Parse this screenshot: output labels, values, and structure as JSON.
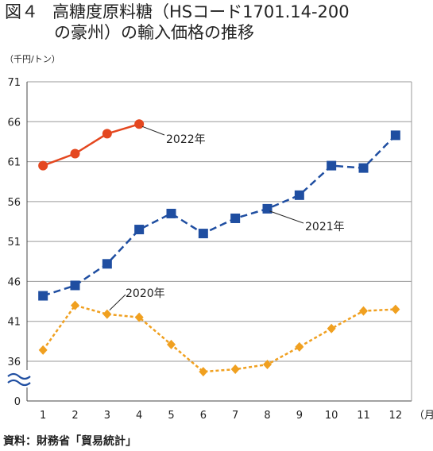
{
  "title": {
    "figure_no": "図４",
    "line1": "高糖度原料糖（HSコード1701.14-200",
    "line2": "の豪州）の輸入価格の推移"
  },
  "unit_label": "（千円/トン）",
  "x_unit_label": "（月）",
  "source": "資料：財務省「貿易統計」",
  "chart_data": {
    "type": "line",
    "categories": [
      "1",
      "2",
      "3",
      "4",
      "5",
      "6",
      "7",
      "8",
      "9",
      "10",
      "11",
      "12"
    ],
    "yticks": [
      "71",
      "66",
      "61",
      "56",
      "51",
      "46",
      "41",
      "36",
      "0"
    ],
    "ylim": [
      36,
      71
    ],
    "y_axis_break": true,
    "grid": true,
    "series": [
      {
        "name": "2022年",
        "color": "#e4471f",
        "marker": "circle",
        "dash": "solid",
        "values": [
          60.5,
          62.0,
          64.5,
          65.7,
          null,
          null,
          null,
          null,
          null,
          null,
          null,
          null
        ]
      },
      {
        "name": "2021年",
        "color": "#1f4ea1",
        "marker": "square",
        "dash": "dashed",
        "values": [
          44.2,
          45.5,
          48.2,
          52.5,
          54.5,
          52.0,
          53.9,
          55.1,
          56.8,
          60.5,
          60.2,
          64.3
        ]
      },
      {
        "name": "2020年",
        "color": "#f0a020",
        "marker": "diamond",
        "dash": "dotted",
        "values": [
          37.4,
          43.0,
          41.9,
          41.5,
          38.1,
          34.7,
          35.0,
          35.6,
          37.8,
          40.1,
          42.3,
          42.5
        ]
      }
    ]
  }
}
